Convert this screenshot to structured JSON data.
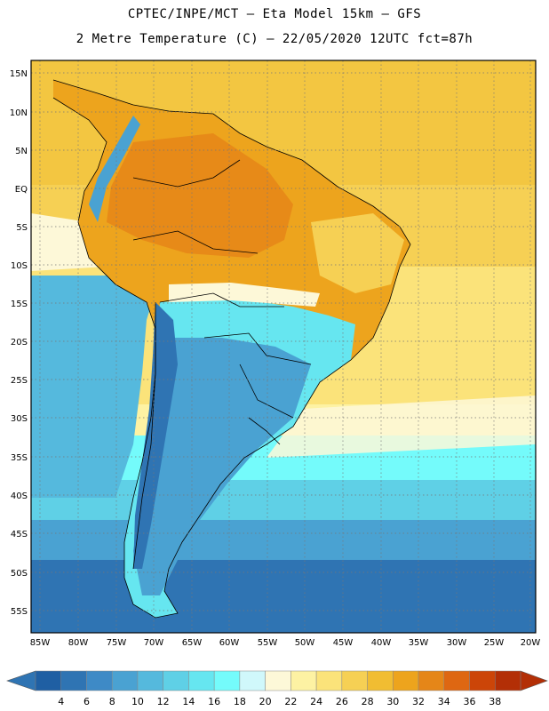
{
  "header": {
    "line1": "CPTEC/INPE/MCT –  Eta Model 15km – GFS",
    "line2": "2 Metre Temperature (C) – 22/05/2020 12UTC fct=87h"
  },
  "map": {
    "lat_ticks": [
      "15N",
      "10N",
      "5N",
      "EQ",
      "5S",
      "10S",
      "15S",
      "20S",
      "25S",
      "30S",
      "35S",
      "40S",
      "45S",
      "50S",
      "55S"
    ],
    "lon_ticks": [
      "85W",
      "80W",
      "75W",
      "70W",
      "65W",
      "60W",
      "55W",
      "50W",
      "45W",
      "40W",
      "35W",
      "30W",
      "25W",
      "20W"
    ],
    "gridlines": true
  },
  "colorbar": {
    "labels": [
      "4",
      "6",
      "8",
      "10",
      "12",
      "14",
      "16",
      "18",
      "20",
      "22",
      "24",
      "26",
      "28",
      "30",
      "32",
      "34",
      "36",
      "38"
    ],
    "colors": [
      "#1f5fa3",
      "#2f74b3",
      "#3e8ac6",
      "#4aa2d2",
      "#55b9dd",
      "#5fd0e6",
      "#66e6f0",
      "#74fbfb",
      "#d0f8fb",
      "#fdf8d8",
      "#fdf2a3",
      "#fbe37a",
      "#f6d054",
      "#f1bd32",
      "#eda41d",
      "#e58618",
      "#de6712",
      "#cc4508",
      "#b32f06"
    ],
    "left_arrow_color": "#2f74b3",
    "right_arrow_color": "#b32f06"
  }
}
